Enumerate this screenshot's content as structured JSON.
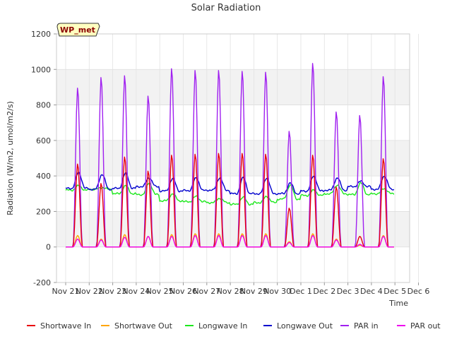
{
  "chart_data": {
    "type": "line",
    "title": "Solar Radiation",
    "xlabel": "Time",
    "ylabel": "Radiation (W/m2, umol/m2/s)",
    "annotation": "WP_met",
    "ylim": [
      -200,
      1200
    ],
    "yticks": [
      -200,
      0,
      200,
      400,
      600,
      800,
      1000,
      1200
    ],
    "xlim": [
      0,
      15
    ],
    "xticks": [
      {
        "x": 0,
        "label": "Nov 21"
      },
      {
        "x": 1,
        "label": "Nov 22"
      },
      {
        "x": 2,
        "label": "Nov 23"
      },
      {
        "x": 3,
        "label": "Nov 24"
      },
      {
        "x": 4,
        "label": "Nov 25"
      },
      {
        "x": 5,
        "label": "Nov 26"
      },
      {
        "x": 6,
        "label": "Nov 27"
      },
      {
        "x": 7,
        "label": "Nov 28"
      },
      {
        "x": 8,
        "label": "Nov 29"
      },
      {
        "x": 9,
        "label": "Nov 30"
      },
      {
        "x": 10,
        "label": "Dec 1"
      },
      {
        "x": 11,
        "label": "Dec 2"
      },
      {
        "x": 12,
        "label": "Dec 3"
      },
      {
        "x": 13,
        "label": "Dec 4"
      },
      {
        "x": 14,
        "label": "Dec 5"
      },
      {
        "x": 15,
        "label": "Dec 6"
      }
    ],
    "grid": true,
    "legend_position": "bottom",
    "days": [
      "Nov 21",
      "Nov 22",
      "Nov 23",
      "Nov 24",
      "Nov 25",
      "Nov 26",
      "Nov 27",
      "Nov 28",
      "Nov 29",
      "Nov 30",
      "Dec 1",
      "Dec 2",
      "Dec 3",
      "Dec 4",
      "Dec 5"
    ],
    "series": [
      {
        "name": "Shortwave In",
        "color": "#e8000b",
        "daily_peak": [
          470,
          360,
          510,
          430,
          520,
          525,
          530,
          530,
          525,
          220,
          520,
          340,
          60,
          500,
          0
        ]
      },
      {
        "name": "Shortwave Out",
        "color": "#ffa500",
        "daily_peak": [
          65,
          45,
          70,
          60,
          70,
          75,
          75,
          75,
          75,
          30,
          75,
          45,
          10,
          65,
          0
        ]
      },
      {
        "name": "Longwave In",
        "color": "#1ce81c",
        "daily_min": [
          320,
          325,
          300,
          295,
          260,
          255,
          250,
          240,
          250,
          270,
          290,
          300,
          295,
          300,
          0
        ],
        "daily_max": [
          345,
          335,
          345,
          360,
          300,
          285,
          275,
          280,
          285,
          350,
          320,
          350,
          360,
          330,
          0
        ]
      },
      {
        "name": "Longwave Out",
        "color": "#0000cd",
        "daily_min": [
          330,
          325,
          330,
          340,
          315,
          318,
          320,
          300,
          300,
          300,
          315,
          320,
          340,
          325,
          0
        ],
        "daily_max": [
          420,
          410,
          415,
          390,
          385,
          390,
          390,
          390,
          390,
          360,
          400,
          390,
          370,
          400,
          0
        ]
      },
      {
        "name": "PAR in",
        "color": "#a020f0",
        "daily_peak": [
          900,
          960,
          970,
          855,
          1010,
          1000,
          1000,
          995,
          990,
          655,
          1040,
          765,
          745,
          965,
          0
        ]
      },
      {
        "name": "PAR out",
        "color": "#ee00ee",
        "daily_peak": [
          45,
          40,
          55,
          60,
          60,
          65,
          65,
          65,
          65,
          25,
          65,
          40,
          15,
          60,
          0
        ]
      }
    ]
  }
}
